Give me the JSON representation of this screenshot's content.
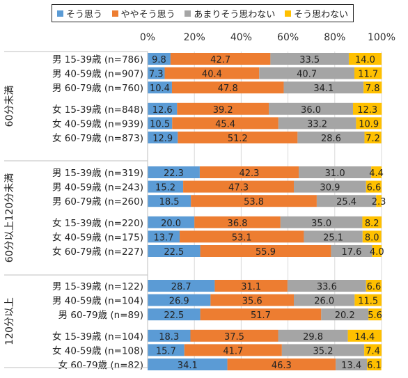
{
  "chart_data": {
    "type": "bar",
    "stacked": true,
    "orientation": "horizontal",
    "xlim": [
      0,
      100
    ],
    "x_ticks": [
      "0%",
      "20%",
      "40%",
      "60%",
      "80%",
      "100%"
    ],
    "legend": {
      "placement": "top",
      "entries": [
        "そう思う",
        "ややそう思う",
        "あまりそう思わない",
        "そう思わない"
      ]
    },
    "colors": [
      "#5b9bd5",
      "#ed7d31",
      "#a5a5a5",
      "#ffc000"
    ],
    "groups": [
      {
        "label": "60分未満",
        "rows": [
          {
            "label": "男 15-39歳 (n=786)",
            "values": [
              9.8,
              42.7,
              33.5,
              14.0
            ]
          },
          {
            "label": "男 40-59歳 (n=907)",
            "values": [
              7.3,
              40.4,
              40.7,
              11.7
            ]
          },
          {
            "label": "男 60-79歳 (n=760)",
            "values": [
              10.4,
              47.8,
              34.1,
              7.8
            ]
          },
          {
            "label": "女 15-39歳 (n=848)",
            "values": [
              12.6,
              39.2,
              36.0,
              12.3
            ]
          },
          {
            "label": "女 40-59歳 (n=939)",
            "values": [
              10.5,
              45.4,
              33.2,
              10.9
            ]
          },
          {
            "label": "女 60-79歳 (n=873)",
            "values": [
              12.9,
              51.2,
              28.6,
              7.2
            ]
          }
        ]
      },
      {
        "label": "60分以上120分未満",
        "rows": [
          {
            "label": "男 15-39歳 (n=319)",
            "values": [
              22.3,
              42.3,
              31.0,
              4.4
            ]
          },
          {
            "label": "男 40-59歳 (n=243)",
            "values": [
              15.2,
              47.3,
              30.9,
              6.6
            ]
          },
          {
            "label": "男 60-79歳 (n=260)",
            "values": [
              18.5,
              53.8,
              25.4,
              2.3
            ]
          },
          {
            "label": "女 15-39歳 (n=220)",
            "values": [
              20.0,
              36.8,
              35.0,
              8.2
            ]
          },
          {
            "label": "女 40-59歳 (n=175)",
            "values": [
              13.7,
              53.1,
              25.1,
              8.0
            ]
          },
          {
            "label": "女 60-79歳 (n=227)",
            "values": [
              22.5,
              55.9,
              17.6,
              4.0
            ]
          }
        ]
      },
      {
        "label": "120分以上",
        "rows": [
          {
            "label": "男 15-39歳 (n=122)",
            "values": [
              28.7,
              31.1,
              33.6,
              6.6
            ]
          },
          {
            "label": "男 40-59歳 (n=104)",
            "values": [
              26.9,
              35.6,
              26.0,
              11.5
            ]
          },
          {
            "label": "男 60-79歳 (n=89)",
            "values": [
              22.5,
              51.7,
              20.2,
              5.6
            ]
          },
          {
            "label": "女 15-39歳 (n=104)",
            "values": [
              18.3,
              37.5,
              29.8,
              14.4
            ]
          },
          {
            "label": "女 40-59歳 (n=108)",
            "values": [
              15.7,
              41.7,
              35.2,
              7.4
            ]
          },
          {
            "label": "女 60-79歳 (n=82)",
            "values": [
              34.1,
              46.3,
              13.4,
              6.1
            ]
          }
        ]
      }
    ]
  }
}
